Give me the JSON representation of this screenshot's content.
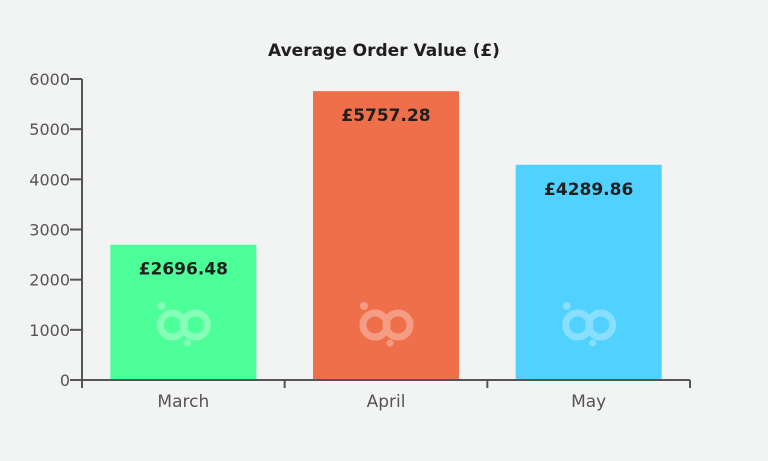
{
  "chart_data": {
    "type": "bar",
    "title": "Average Order Value (£)",
    "xlabel": "",
    "ylabel": "",
    "categories": [
      "March",
      "April",
      "May"
    ],
    "values": [
      2696.48,
      5757.28,
      4289.86
    ],
    "data_labels": [
      "£2696.48",
      "£5757.28",
      "£4289.86"
    ],
    "yticks": [
      "0",
      "1000",
      "2000",
      "3000",
      "4000",
      "5000",
      "6000"
    ],
    "ylim": [
      0,
      6000
    ],
    "grid": false,
    "legend": "none",
    "colors": [
      "#4cff98",
      "#ef6f4a",
      "#50d1ff"
    ],
    "axis_color": "#555555",
    "watermark_icon": "bp-logo-icon"
  }
}
